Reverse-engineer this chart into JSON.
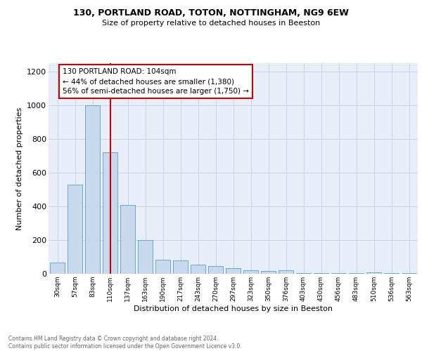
{
  "title1": "130, PORTLAND ROAD, TOTON, NOTTINGHAM, NG9 6EW",
  "title2": "Size of property relative to detached houses in Beeston",
  "xlabel": "Distribution of detached houses by size in Beeston",
  "ylabel": "Number of detached properties",
  "categories": [
    "30sqm",
    "57sqm",
    "83sqm",
    "110sqm",
    "137sqm",
    "163sqm",
    "190sqm",
    "217sqm",
    "243sqm",
    "270sqm",
    "297sqm",
    "323sqm",
    "350sqm",
    "376sqm",
    "403sqm",
    "430sqm",
    "456sqm",
    "483sqm",
    "510sqm",
    "536sqm",
    "563sqm"
  ],
  "values": [
    65,
    530,
    1000,
    720,
    410,
    200,
    85,
    80,
    55,
    45,
    35,
    20,
    18,
    20,
    5,
    5,
    5,
    5,
    10,
    5,
    5
  ],
  "bar_color": "#c8d9ed",
  "bar_edge_color": "#5a9fc8",
  "red_line_color": "#cc0000",
  "annotation_text": "130 PORTLAND ROAD: 104sqm\n← 44% of detached houses are smaller (1,380)\n56% of semi-detached houses are larger (1,750) →",
  "annotation_box_color": "#ffffff",
  "annotation_box_edge_color": "#cc0000",
  "grid_color": "#c8d4e8",
  "background_color": "#e8eef8",
  "ylim": [
    0,
    1250
  ],
  "yticks": [
    0,
    200,
    400,
    600,
    800,
    1000,
    1200
  ],
  "footer": "Contains HM Land Registry data © Crown copyright and database right 2024.\nContains public sector information licensed under the Open Government Licence v3.0."
}
